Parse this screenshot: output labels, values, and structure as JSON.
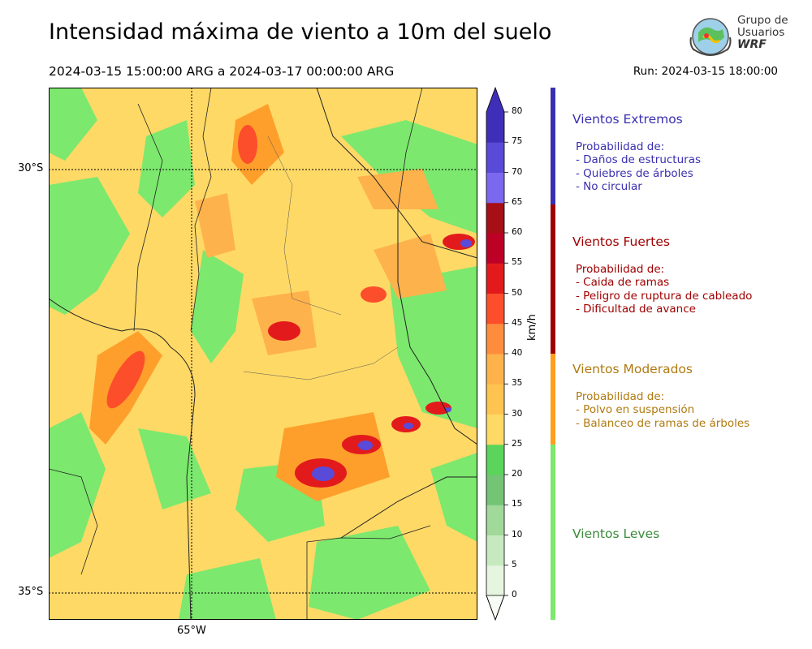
{
  "title": "Intensidad máxima de viento a 10m del suelo",
  "subtitle": "2024-03-15 15:00:00 ARG  a  2024-03-17 00:00:00 ARG",
  "run": "Run: 2024-03-15 18:00:00",
  "logo": {
    "line1": "Grupo de",
    "line2": "Usuarios",
    "line3": "WRF"
  },
  "axes": {
    "lat_labels": [
      "30°S",
      "35°S"
    ],
    "lon_labels": [
      "65°W"
    ]
  },
  "colorbar": {
    "unit": "km/h",
    "ticks": [
      "0",
      "5",
      "10",
      "15",
      "20",
      "25",
      "30",
      "35",
      "40",
      "45",
      "50",
      "55",
      "60",
      "65",
      "70",
      "75",
      "80"
    ],
    "colors": [
      "#f7fcf5",
      "#e5f5e0",
      "#c7e9c0",
      "#a1d99b",
      "#74c476",
      "#5ad45a",
      "#ffd966",
      "#fec44f",
      "#feb24c",
      "#fd8d3c",
      "#fc4e2a",
      "#e31a1c",
      "#bd0026",
      "#a50f15",
      "#7b68ee",
      "#5a4ad8",
      "#3f2fb8"
    ]
  },
  "categories": [
    {
      "name": "Vientos Extremos",
      "color": "#3a2fb0",
      "desc": [
        "Probabilidad de:",
        "- Daños de estructuras",
        "- Quiebres de árboles",
        "- No circular"
      ]
    },
    {
      "name": "Vientos Fuertes",
      "color": "#a00000",
      "desc": [
        "Probabilidad de:",
        "- Caida de ramas",
        "- Peligro de ruptura de cableado",
        "- Dificultad de avance"
      ]
    },
    {
      "name": "Vientos Moderados",
      "color": "#b07a10",
      "desc": [
        "Probabilidad de:",
        "- Polvo en suspensión",
        "- Balanceo de ramas de árboles"
      ]
    },
    {
      "name": "Vientos Leves",
      "color": "#3a8a3a",
      "desc": []
    }
  ]
}
